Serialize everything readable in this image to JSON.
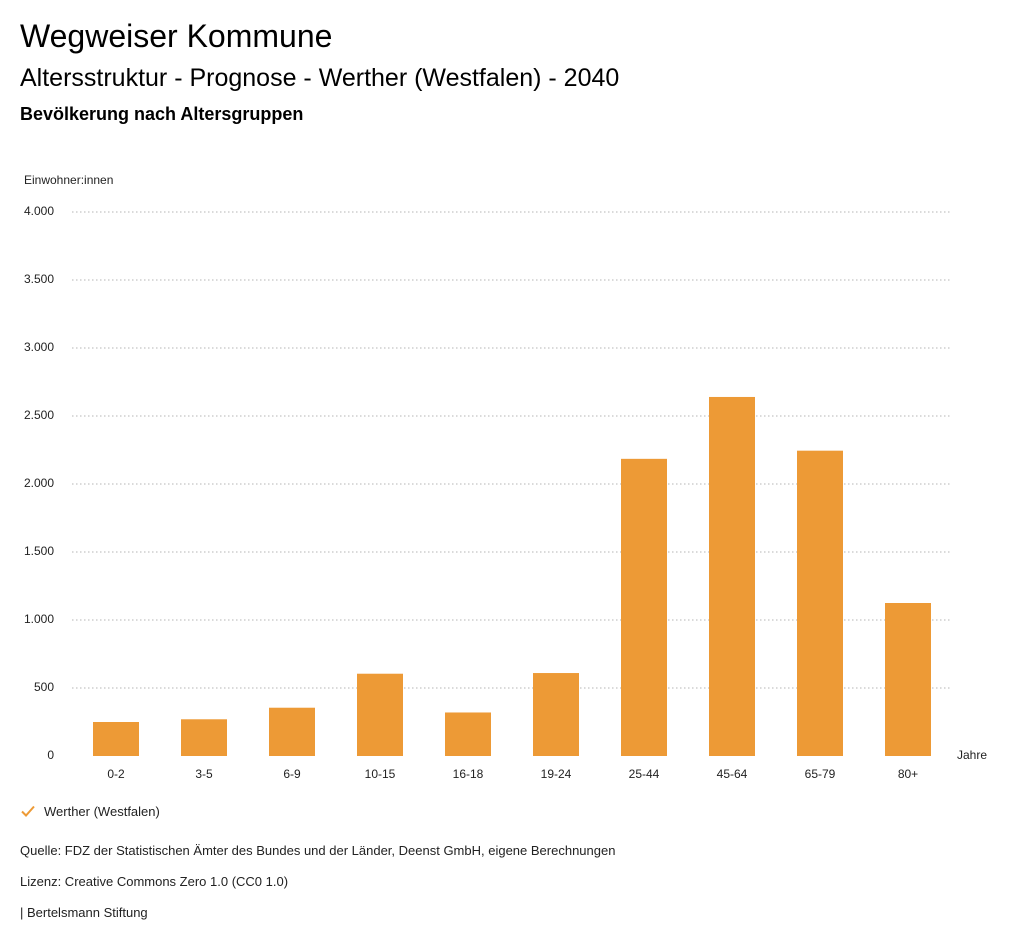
{
  "header": {
    "title": "Wegweiser Kommune",
    "subtitle": "Altersstruktur - Prognose - Werther (Westfalen) - 2040",
    "chart_title": "Bevölkerung nach Altersgruppen"
  },
  "chart_data": {
    "type": "bar",
    "ylabel": "Einwohner:innen",
    "xlabel": "Jahre",
    "ylim": [
      0,
      4000
    ],
    "yticks": [
      0,
      500,
      1000,
      1500,
      2000,
      2500,
      3000,
      3500,
      4000
    ],
    "ytick_labels": [
      "0",
      "500",
      "1.000",
      "1.500",
      "2.000",
      "2.500",
      "3.000",
      "3.500",
      "4.000"
    ],
    "grid": true,
    "categories": [
      "0-2",
      "3-5",
      "6-9",
      "10-15",
      "16-18",
      "19-24",
      "25-44",
      "45-64",
      "65-79",
      "80+"
    ],
    "series": [
      {
        "name": "Werther (Westfalen)",
        "color": "#ed9a36",
        "values": [
          250,
          270,
          355,
          605,
          320,
          610,
          2185,
          2640,
          2245,
          1125
        ]
      }
    ],
    "legend_position": "bottom-left"
  },
  "footer": {
    "source": "Quelle: FDZ der Statistischen Ämter des Bundes und der Länder, Deenst GmbH, eigene Berechnungen",
    "license": "Lizenz: Creative Commons Zero 1.0 (CC0 1.0)",
    "publisher": "| Bertelsmann Stiftung"
  }
}
